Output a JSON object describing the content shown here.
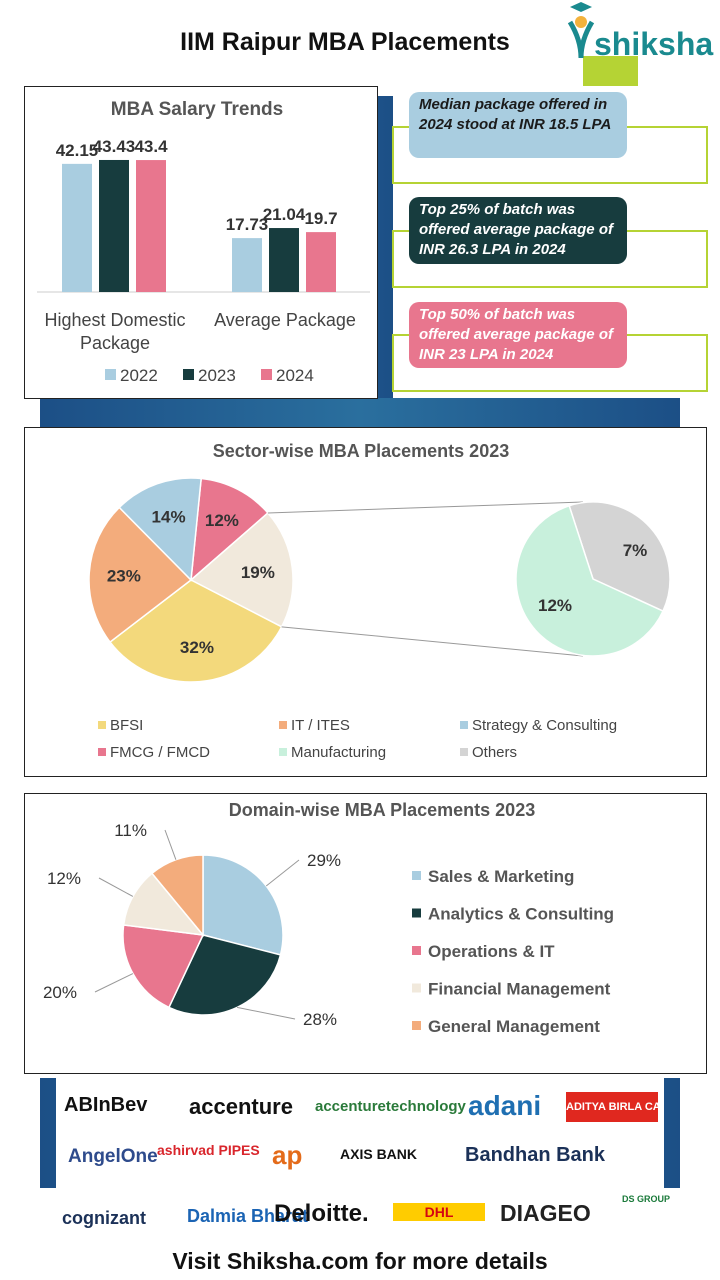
{
  "header": {
    "title": "IIM Raipur MBA Placements",
    "brand": "shiksha"
  },
  "colors": {
    "light_blue": "#a9cde0",
    "dark_teal": "#173c3e",
    "pink": "#e8768e",
    "beige": "#f1e9dc",
    "orange": "#f3ac7c",
    "mint": "#c8f0dc",
    "gray": "#d4d4d4",
    "yellow": "#f3d97c",
    "lime": "#b5d334"
  },
  "callouts": [
    {
      "text": "Median package offered in 2024 stood at INR 18.5 LPA"
    },
    {
      "text": "Top 25% of batch was offered average package of INR 26.3 LPA in 2024"
    },
    {
      "text": "Top 50% of batch was offered average package of INR 23 LPA in 2024"
    }
  ],
  "chart_data": [
    {
      "type": "bar",
      "title": "MBA Salary Trends",
      "categories": [
        "Highest Domestic Package",
        "Average Package"
      ],
      "series": [
        {
          "name": "2022",
          "values": [
            42.15,
            17.73
          ]
        },
        {
          "name": "2023",
          "values": [
            43.43,
            21.04
          ]
        },
        {
          "name": "2024",
          "values": [
            43.4,
            19.7
          ]
        }
      ],
      "labels": [
        [
          "42.15",
          "17.73"
        ],
        [
          "43.43",
          "21.04"
        ],
        [
          "43.4",
          "19.7"
        ]
      ],
      "ylim": [
        0,
        50
      ],
      "legend": "bottom"
    },
    {
      "type": "pie",
      "subtype": "pie-of-pie",
      "title": "Sector-wise MBA Placements 2023",
      "slices": [
        {
          "name": "BFSI",
          "value": 32,
          "label": "32%"
        },
        {
          "name": "IT / ITES",
          "value": 23,
          "label": "23%"
        },
        {
          "name": "Strategy & Consulting",
          "value": 14,
          "label": "14%"
        },
        {
          "name": "FMCG / FMCD",
          "value": 12,
          "label": "12%"
        },
        {
          "name": "Manufacturing",
          "value": 12,
          "label": "12%"
        },
        {
          "name": "Others",
          "value": 7,
          "label": "7%"
        }
      ],
      "combined_label": "19%",
      "legend": "bottom"
    },
    {
      "type": "pie",
      "title": "Domain-wise MBA Placements 2023",
      "slices": [
        {
          "name": "Sales & Marketing",
          "value": 29,
          "label": "29%"
        },
        {
          "name": "Analytics & Consulting",
          "value": 28,
          "label": "28%"
        },
        {
          "name": "Operations & IT",
          "value": 20,
          "label": "20%"
        },
        {
          "name": "Financial Management",
          "value": 12,
          "label": "12%"
        },
        {
          "name": "General Management",
          "value": 11,
          "label": "11%"
        }
      ],
      "legend": "right"
    }
  ],
  "recruiters": [
    "ABInBev",
    "accenture",
    "accenturetechnology",
    "adani",
    "ADITYA BIRLA CAPITAL",
    "AngelOne",
    "ashirvad PIPES",
    "ap",
    "AXIS BANK",
    "Bandhan Bank",
    "cognizant",
    "Dalmia Bharat",
    "Deloitte.",
    "DHL",
    "DIAGEO",
    "DS GROUP"
  ],
  "footer": {
    "text": "Visit Shiksha.com for more details"
  }
}
